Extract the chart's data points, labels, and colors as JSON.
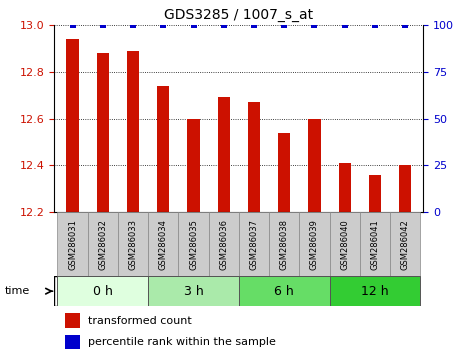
{
  "title": "GDS3285 / 1007_s_at",
  "samples": [
    "GSM286031",
    "GSM286032",
    "GSM286033",
    "GSM286034",
    "GSM286035",
    "GSM286036",
    "GSM286037",
    "GSM286038",
    "GSM286039",
    "GSM286040",
    "GSM286041",
    "GSM286042"
  ],
  "red_values": [
    12.94,
    12.88,
    12.89,
    12.74,
    12.6,
    12.69,
    12.67,
    12.54,
    12.6,
    12.41,
    12.36,
    12.4
  ],
  "blue_values": [
    100,
    100,
    100,
    100,
    100,
    100,
    100,
    100,
    100,
    100,
    100,
    100
  ],
  "ylim_left": [
    12.2,
    13.0
  ],
  "ylim_right": [
    0,
    100
  ],
  "yticks_left": [
    12.2,
    12.4,
    12.6,
    12.8,
    13.0
  ],
  "yticks_right": [
    0,
    25,
    50,
    75,
    100
  ],
  "groups": [
    {
      "label": "0 h",
      "indices": [
        0,
        1,
        2
      ],
      "color": "#dfffdf"
    },
    {
      "label": "3 h",
      "indices": [
        3,
        4,
        5
      ],
      "color": "#aaeaaa"
    },
    {
      "label": "6 h",
      "indices": [
        6,
        7,
        8
      ],
      "color": "#66dd66"
    },
    {
      "label": "12 h",
      "indices": [
        9,
        10,
        11
      ],
      "color": "#33cc33"
    }
  ],
  "time_label": "time",
  "bar_color": "#cc1100",
  "dot_color": "#0000cc",
  "bg_color": "#ffffff",
  "tick_label_color_left": "#cc1100",
  "tick_label_color_right": "#0000cc",
  "grid_color": "#000000",
  "sample_bg": "#cccccc",
  "sample_edge": "#888888"
}
